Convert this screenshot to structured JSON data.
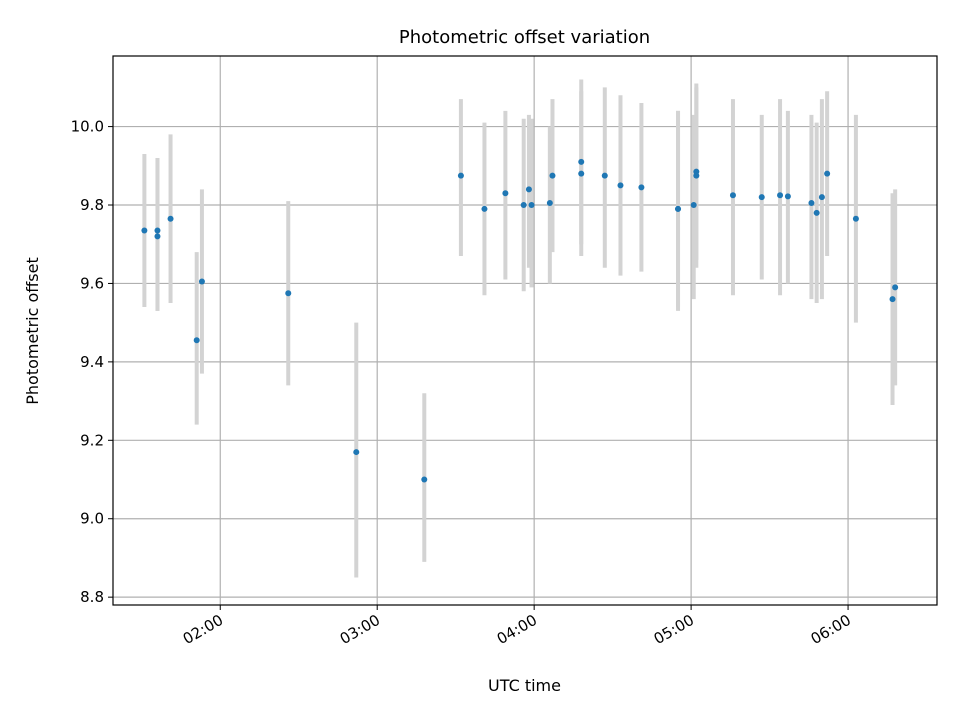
{
  "chart_data": {
    "type": "scatter",
    "title": "Photometric offset variation",
    "xlabel": "UTC time",
    "ylabel": "Photometric offset",
    "x_tick_labels": [
      "02:00",
      "03:00",
      "04:00",
      "05:00",
      "06:00"
    ],
    "y_tick_labels": [
      "8.8",
      "9.0",
      "9.2",
      "9.4",
      "9.6",
      "9.8",
      "10.0"
    ],
    "x_ticks": [
      "02:00",
      "03:00",
      "04:00",
      "05:00",
      "06:00"
    ],
    "y_ticks": [
      8.8,
      9.0,
      9.2,
      9.4,
      9.6,
      9.8,
      10.0
    ],
    "xlim": [
      "01:19",
      "06:34"
    ],
    "ylim": [
      8.78,
      10.18
    ],
    "grid": true,
    "colors": {
      "marker": "#1f77b4",
      "errorbar": "#d3d3d3",
      "grid": "#b0b0b0"
    },
    "series": [
      {
        "points": [
          {
            "x": "01:31",
            "y": 9.735,
            "y_low": 9.54,
            "y_high": 9.93
          },
          {
            "x": "01:36",
            "y": 9.735,
            "y_low": 9.53,
            "y_high": 9.92
          },
          {
            "x": "01:36",
            "y": 9.72,
            "y_low": 9.53,
            "y_high": 9.92
          },
          {
            "x": "01:41",
            "y": 9.765,
            "y_low": 9.55,
            "y_high": 9.98
          },
          {
            "x": "01:51",
            "y": 9.455,
            "y_low": 9.24,
            "y_high": 9.68
          },
          {
            "x": "01:53",
            "y": 9.605,
            "y_low": 9.37,
            "y_high": 9.84
          },
          {
            "x": "02:26",
            "y": 9.575,
            "y_low": 9.34,
            "y_high": 9.81
          },
          {
            "x": "02:52",
            "y": 9.17,
            "y_low": 8.85,
            "y_high": 9.5
          },
          {
            "x": "03:18",
            "y": 9.1,
            "y_low": 8.89,
            "y_high": 9.32
          },
          {
            "x": "03:32",
            "y": 9.875,
            "y_low": 9.67,
            "y_high": 10.07
          },
          {
            "x": "03:41",
            "y": 9.79,
            "y_low": 9.57,
            "y_high": 10.01
          },
          {
            "x": "03:49",
            "y": 9.83,
            "y_low": 9.61,
            "y_high": 10.04
          },
          {
            "x": "03:56",
            "y": 9.8,
            "y_low": 9.58,
            "y_high": 10.02
          },
          {
            "x": "03:58",
            "y": 9.84,
            "y_low": 9.64,
            "y_high": 10.03
          },
          {
            "x": "03:59",
            "y": 9.8,
            "y_low": 9.59,
            "y_high": 10.02
          },
          {
            "x": "04:06",
            "y": 9.805,
            "y_low": 9.6,
            "y_high": 10.0
          },
          {
            "x": "04:07",
            "y": 9.875,
            "y_low": 9.68,
            "y_high": 10.07
          },
          {
            "x": "04:18",
            "y": 9.91,
            "y_low": 9.7,
            "y_high": 10.12
          },
          {
            "x": "04:18",
            "y": 9.88,
            "y_low": 9.67,
            "y_high": 10.09
          },
          {
            "x": "04:27",
            "y": 9.875,
            "y_low": 9.64,
            "y_high": 10.1
          },
          {
            "x": "04:33",
            "y": 9.85,
            "y_low": 9.62,
            "y_high": 10.08
          },
          {
            "x": "04:41",
            "y": 9.845,
            "y_low": 9.63,
            "y_high": 10.06
          },
          {
            "x": "04:55",
            "y": 9.79,
            "y_low": 9.54,
            "y_high": 10.04
          },
          {
            "x": "04:55",
            "y": 9.79,
            "y_low": 9.53,
            "y_high": 10.04
          },
          {
            "x": "05:01",
            "y": 9.8,
            "y_low": 9.56,
            "y_high": 10.03
          },
          {
            "x": "05:02",
            "y": 9.885,
            "y_low": 9.66,
            "y_high": 10.11
          },
          {
            "x": "05:02",
            "y": 9.875,
            "y_low": 9.64,
            "y_high": 10.1
          },
          {
            "x": "05:16",
            "y": 9.825,
            "y_low": 9.57,
            "y_high": 10.07
          },
          {
            "x": "05:27",
            "y": 9.82,
            "y_low": 9.61,
            "y_high": 10.03
          },
          {
            "x": "05:34",
            "y": 9.825,
            "y_low": 9.57,
            "y_high": 10.07
          },
          {
            "x": "05:37",
            "y": 9.822,
            "y_low": 9.6,
            "y_high": 10.04
          },
          {
            "x": "05:46",
            "y": 9.805,
            "y_low": 9.56,
            "y_high": 10.03
          },
          {
            "x": "05:48",
            "y": 9.78,
            "y_low": 9.55,
            "y_high": 10.01
          },
          {
            "x": "05:50",
            "y": 9.82,
            "y_low": 9.56,
            "y_high": 10.07
          },
          {
            "x": "05:52",
            "y": 9.88,
            "y_low": 9.67,
            "y_high": 10.09
          },
          {
            "x": "06:03",
            "y": 9.765,
            "y_low": 9.5,
            "y_high": 10.03
          },
          {
            "x": "06:17",
            "y": 9.56,
            "y_low": 9.29,
            "y_high": 9.83
          },
          {
            "x": "06:18",
            "y": 9.59,
            "y_low": 9.34,
            "y_high": 9.84
          }
        ]
      }
    ]
  }
}
